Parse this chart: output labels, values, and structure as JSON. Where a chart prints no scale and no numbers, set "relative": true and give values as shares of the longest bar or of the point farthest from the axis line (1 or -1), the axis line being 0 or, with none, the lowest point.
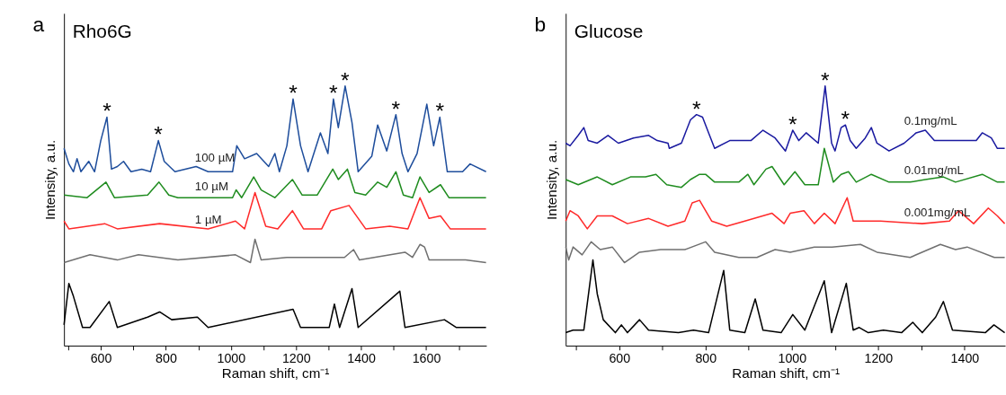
{
  "chart_data": [
    {
      "type": "line",
      "title": "Rho6G",
      "xlabel": "Raman shift, cm⁻¹",
      "ylabel": "Intensity, a.u.",
      "relative": true,
      "tick_labels": "x",
      "grid": false,
      "legend": false,
      "marker": "none",
      "line_style": "solid",
      "xlim": [
        487,
        1785
      ],
      "xticks": [
        {
          "value": 500,
          "label": null
        },
        600,
        {
          "value": 700,
          "label": null
        },
        800,
        {
          "value": 900,
          "label": null
        },
        1000,
        {
          "value": 1100,
          "label": null
        },
        1200,
        {
          "value": 1300,
          "label": null
        },
        1400,
        {
          "value": 1500,
          "label": null
        },
        1600,
        {
          "value": 1700,
          "label": null
        }
      ],
      "series": [
        {
          "name": "100 µM",
          "color": "#1f4e9c",
          "x": [
            487,
            502,
            516,
            527,
            539,
            563,
            581,
            600,
            619,
            633,
            651,
            670,
            693,
            726,
            753,
            777,
            795,
            828,
            893,
            930,
            1005,
            1018,
            1042,
            1079,
            1116,
            1135,
            1149,
            1172,
            1191,
            1214,
            1237,
            1275,
            1298,
            1315,
            1330,
            1351,
            1372,
            1391,
            1433,
            1451,
            1479,
            1507,
            1526,
            1544,
            1572,
            1602,
            1623,
            1642,
            1665,
            1712,
            1735,
            1784
          ],
          "values": [
            0.76,
            0.7,
            0.67,
            0.72,
            0.67,
            0.71,
            0.67,
            0.79,
            0.88,
            0.68,
            0.69,
            0.71,
            0.67,
            0.68,
            0.67,
            0.79,
            0.71,
            0.67,
            0.69,
            0.67,
            0.67,
            0.77,
            0.72,
            0.74,
            0.69,
            0.74,
            0.67,
            0.77,
            0.95,
            0.77,
            0.67,
            0.82,
            0.74,
            0.95,
            0.84,
            1.0,
            0.86,
            0.67,
            0.73,
            0.85,
            0.75,
            0.89,
            0.74,
            0.67,
            0.74,
            0.93,
            0.77,
            0.88,
            0.67,
            0.67,
            0.7,
            0.67
          ]
        },
        {
          "name": "10 µM",
          "color": "#1f8c1f",
          "x": [
            487,
            558,
            616,
            642,
            744,
            779,
            809,
            837,
            1005,
            1016,
            1033,
            1070,
            1093,
            1135,
            1189,
            1219,
            1265,
            1313,
            1330,
            1358,
            1381,
            1414,
            1451,
            1479,
            1507,
            1530,
            1558,
            1581,
            1609,
            1644,
            1670,
            1784
          ],
          "values": [
            0.58,
            0.57,
            0.63,
            0.57,
            0.58,
            0.63,
            0.58,
            0.57,
            0.57,
            0.6,
            0.57,
            0.65,
            0.6,
            0.57,
            0.64,
            0.58,
            0.58,
            0.68,
            0.64,
            0.68,
            0.59,
            0.58,
            0.63,
            0.61,
            0.67,
            0.58,
            0.57,
            0.65,
            0.59,
            0.62,
            0.57,
            0.57
          ]
        },
        {
          "name": "1 µM",
          "color": "#ff2a2a",
          "x": [
            487,
            502,
            612,
            651,
            781,
            930,
            1014,
            1042,
            1074,
            1107,
            1144,
            1189,
            1223,
            1279,
            1307,
            1363,
            1414,
            1488,
            1544,
            1581,
            1609,
            1644,
            1674,
            1784
          ],
          "values": [
            0.48,
            0.45,
            0.47,
            0.45,
            0.47,
            0.45,
            0.48,
            0.45,
            0.59,
            0.46,
            0.45,
            0.52,
            0.45,
            0.45,
            0.52,
            0.54,
            0.45,
            0.46,
            0.45,
            0.57,
            0.49,
            0.5,
            0.45,
            0.45
          ]
        },
        {
          "color": "#707070",
          "x": [
            487,
            567,
            651,
            716,
            837,
            1014,
            1060,
            1074,
            1093,
            1172,
            1349,
            1377,
            1395,
            1535,
            1558,
            1581,
            1595,
            1609,
            1721,
            1784
          ],
          "values": [
            0.32,
            0.35,
            0.33,
            0.35,
            0.33,
            0.35,
            0.32,
            0.41,
            0.33,
            0.34,
            0.34,
            0.37,
            0.33,
            0.36,
            0.34,
            0.39,
            0.38,
            0.33,
            0.33,
            0.32
          ]
        },
        {
          "color": "#000000",
          "x": [
            487,
            502,
            516,
            544,
            567,
            626,
            651,
            744,
            781,
            818,
            897,
            930,
            1191,
            1214,
            1302,
            1318,
            1334,
            1372,
            1391,
            1519,
            1535,
            1656,
            1693,
            1784
          ],
          "values": [
            0.08,
            0.24,
            0.19,
            0.07,
            0.07,
            0.17,
            0.07,
            0.11,
            0.13,
            0.1,
            0.11,
            0.07,
            0.14,
            0.07,
            0.07,
            0.16,
            0.07,
            0.22,
            0.07,
            0.21,
            0.07,
            0.1,
            0.07,
            0.07
          ]
        }
      ],
      "annotations": [
        "a",
        {
          "text": "*",
          "x": 619,
          "y": 0.88
        },
        {
          "text": "*",
          "x": 777,
          "y": 0.79
        },
        {
          "text": "*",
          "x": 1191,
          "y": 0.95
        },
        {
          "text": "*",
          "x": 1315,
          "y": 0.95
        },
        {
          "text": "*",
          "x": 1351,
          "y": 1.0
        },
        {
          "text": "*",
          "x": 1507,
          "y": 0.89
        },
        {
          "text": "*",
          "x": 1642,
          "y": 0.88
        }
      ]
    },
    {
      "type": "line",
      "title": "Glucose",
      "xlabel": "Raman shift, cm⁻¹",
      "ylabel": "Intensity, a.u.",
      "relative": true,
      "tick_labels": "x",
      "grid": false,
      "legend": false,
      "marker": "none",
      "line_style": "solid",
      "xlim": [
        476,
        1494
      ],
      "xticks": [
        {
          "value": 500,
          "label": null
        },
        600,
        {
          "value": 700,
          "label": null
        },
        800,
        {
          "value": 900,
          "label": null
        },
        1000,
        {
          "value": 1100,
          "label": null
        },
        1200,
        {
          "value": 1300,
          "label": null
        },
        1400
      ],
      "series": [
        {
          "name": "0.1mg/mL",
          "color": "#1a1aa0",
          "x": [
            476,
            486,
            505,
            518,
            528,
            549,
            574,
            598,
            633,
            668,
            688,
            713,
            716,
            744,
            765,
            779,
            793,
            807,
            821,
            856,
            905,
            933,
            961,
            985,
            1002,
            1016,
            1033,
            1061,
            1077,
            1092,
            1100,
            1114,
            1124,
            1135,
            1149,
            1170,
            1184,
            1197,
            1225,
            1260,
            1288,
            1309,
            1330,
            1379,
            1406,
            1427,
            1441,
            1462,
            1476,
            1493
          ],
          "values": [
            0.78,
            0.77,
            0.81,
            0.84,
            0.79,
            0.78,
            0.81,
            0.78,
            0.8,
            0.81,
            0.79,
            0.78,
            0.76,
            0.78,
            0.87,
            0.89,
            0.88,
            0.82,
            0.76,
            0.79,
            0.79,
            0.83,
            0.8,
            0.75,
            0.83,
            0.79,
            0.82,
            0.78,
            1.0,
            0.78,
            0.75,
            0.84,
            0.85,
            0.79,
            0.76,
            0.8,
            0.84,
            0.78,
            0.75,
            0.78,
            0.82,
            0.83,
            0.79,
            0.79,
            0.79,
            0.79,
            0.82,
            0.8,
            0.76,
            0.76
          ]
        },
        {
          "name": "0.01mg/mL",
          "color": "#1f8c1f",
          "x": [
            476,
            505,
            549,
            584,
            626,
            661,
            685,
            710,
            744,
            765,
            786,
            800,
            821,
            877,
            898,
            912,
            940,
            954,
            982,
            1007,
            1030,
            1061,
            1075,
            1096,
            1114,
            1131,
            1149,
            1184,
            1225,
            1274,
            1309,
            1351,
            1379,
            1441,
            1476,
            1493
          ],
          "values": [
            0.64,
            0.62,
            0.65,
            0.62,
            0.65,
            0.65,
            0.66,
            0.62,
            0.61,
            0.64,
            0.66,
            0.66,
            0.63,
            0.63,
            0.66,
            0.62,
            0.68,
            0.69,
            0.62,
            0.67,
            0.62,
            0.62,
            0.76,
            0.63,
            0.66,
            0.67,
            0.63,
            0.66,
            0.63,
            0.63,
            0.64,
            0.65,
            0.63,
            0.66,
            0.63,
            0.63
          ]
        },
        {
          "name": "0.001mg/mL",
          "color": "#ff2a2a",
          "x": [
            476,
            486,
            505,
            526,
            549,
            584,
            619,
            668,
            713,
            752,
            769,
            786,
            814,
            849,
            891,
            954,
            982,
            996,
            1028,
            1052,
            1075,
            1100,
            1128,
            1142,
            1205,
            1302,
            1365,
            1386,
            1421,
            1455,
            1476,
            1493
          ],
          "values": [
            0.48,
            0.52,
            0.5,
            0.45,
            0.5,
            0.5,
            0.47,
            0.49,
            0.46,
            0.48,
            0.55,
            0.56,
            0.48,
            0.46,
            0.48,
            0.51,
            0.47,
            0.51,
            0.52,
            0.47,
            0.51,
            0.47,
            0.57,
            0.48,
            0.48,
            0.47,
            0.48,
            0.52,
            0.47,
            0.53,
            0.5,
            0.47
          ]
        },
        {
          "color": "#707070",
          "x": [
            476,
            483,
            493,
            514,
            535,
            556,
            584,
            612,
            647,
            696,
            752,
            800,
            821,
            877,
            919,
            961,
            996,
            1052,
            1093,
            1159,
            1197,
            1274,
            1344,
            1379,
            1406,
            1469,
            1493
          ],
          "values": [
            0.38,
            0.33,
            0.38,
            0.35,
            0.4,
            0.37,
            0.38,
            0.32,
            0.36,
            0.37,
            0.37,
            0.4,
            0.36,
            0.34,
            0.34,
            0.37,
            0.36,
            0.38,
            0.38,
            0.39,
            0.36,
            0.34,
            0.39,
            0.37,
            0.38,
            0.34,
            0.34
          ]
        },
        {
          "color": "#000000",
          "x": [
            476,
            493,
            518,
            539,
            549,
            563,
            591,
            605,
            619,
            647,
            668,
            737,
            772,
            807,
            842,
            856,
            891,
            915,
            933,
            975,
            1002,
            1030,
            1075,
            1092,
            1126,
            1142,
            1156,
            1177,
            1212,
            1254,
            1280,
            1302,
            1333,
            1351,
            1372,
            1448,
            1468,
            1493
          ],
          "values": [
            0.05,
            0.06,
            0.06,
            0.33,
            0.2,
            0.1,
            0.05,
            0.08,
            0.05,
            0.1,
            0.06,
            0.05,
            0.06,
            0.05,
            0.29,
            0.06,
            0.05,
            0.18,
            0.06,
            0.05,
            0.12,
            0.06,
            0.25,
            0.05,
            0.24,
            0.06,
            0.07,
            0.05,
            0.06,
            0.05,
            0.09,
            0.05,
            0.11,
            0.17,
            0.06,
            0.05,
            0.08,
            0.05
          ]
        }
      ],
      "annotations": [
        "b",
        {
          "text": "*",
          "x": 779,
          "y": 0.89
        },
        {
          "text": "*",
          "x": 1002,
          "y": 0.83
        },
        {
          "text": "*",
          "x": 1077,
          "y": 1.0
        },
        {
          "text": "*",
          "x": 1124,
          "y": 0.85
        }
      ]
    }
  ]
}
